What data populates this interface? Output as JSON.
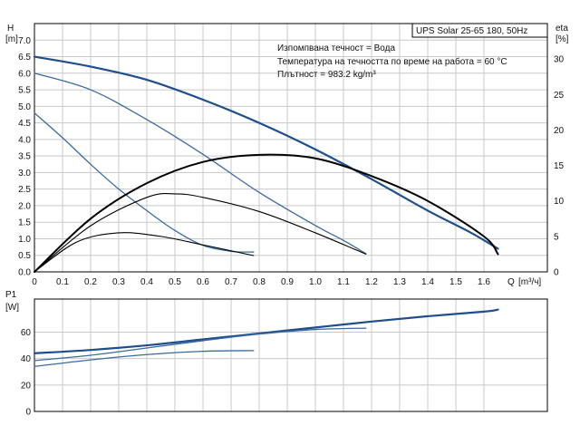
{
  "chart_data": [
    {
      "type": "line",
      "title": "UPS Solar 25-65 180, 50Hz",
      "annotations": [
        "Изпомпвана течност = Вода",
        "Температура на течността по време на работа = 60 °C",
        "Плътност = 983.2 kg/m³"
      ],
      "xlabel": "Q [m³/h]",
      "x_axis_label": "Q",
      "x_unit": "[m³/ч]",
      "ylabel_left": "H [m]",
      "y_left_label": "H",
      "y_left_unit": "[m]",
      "ylabel_right": "eta [%]",
      "y_right_label": "eta",
      "y_right_unit": "[%]",
      "xlim": [
        0,
        1.8
      ],
      "ylim_left": [
        0,
        7.5
      ],
      "ylim_right": [
        0,
        35
      ],
      "x_ticks": [
        "0",
        "0.1",
        "0.2",
        "0.3",
        "0.4",
        "0.5",
        "0.6",
        "0.7",
        "0.8",
        "0.9",
        "1.0",
        "1.1",
        "1.2",
        "1.3",
        "1.4",
        "1.5",
        "1.6"
      ],
      "y_left_ticks": [
        "0.0",
        "0.5",
        "1.0",
        "1.5",
        "2.0",
        "2.5",
        "3.0",
        "3.5",
        "4.0",
        "4.5",
        "5.0",
        "5.5",
        "6.0",
        "6.5",
        "7.0"
      ],
      "y_right_ticks": [
        "0",
        "5",
        "10",
        "15",
        "20",
        "25",
        "30"
      ],
      "grid": true,
      "series": [
        {
          "axis": "left",
          "color": "#1f4e8c",
          "width": 2.2,
          "x": [
            0,
            0.2,
            0.4,
            0.6,
            0.8,
            1.0,
            1.2,
            1.4,
            1.55,
            1.65
          ],
          "y": [
            6.5,
            6.2,
            5.8,
            5.2,
            4.5,
            3.7,
            2.8,
            1.85,
            1.2,
            0.7
          ]
        },
        {
          "axis": "left",
          "color": "#3b6aa0",
          "width": 1.3,
          "x": [
            0,
            0.2,
            0.4,
            0.6,
            0.8,
            1.0,
            1.1,
            1.18
          ],
          "y": [
            6.0,
            5.5,
            4.6,
            3.55,
            2.4,
            1.4,
            0.95,
            0.55
          ]
        },
        {
          "axis": "left",
          "color": "#3b6aa0",
          "width": 1.3,
          "x": [
            0,
            0.1,
            0.2,
            0.3,
            0.4,
            0.5,
            0.6,
            0.7,
            0.78
          ],
          "y": [
            4.8,
            4.05,
            3.25,
            2.5,
            1.85,
            1.25,
            0.8,
            0.62,
            0.6
          ]
        },
        {
          "axis": "right",
          "color": "#000000",
          "width": 2.0,
          "x": [
            0,
            0.2,
            0.4,
            0.6,
            0.8,
            1.0,
            1.2,
            1.4,
            1.6,
            1.65
          ],
          "y": [
            0,
            7.5,
            12.5,
            15.5,
            16.5,
            16.0,
            13.5,
            10.0,
            5.0,
            2.5
          ]
        },
        {
          "axis": "right",
          "color": "#000000",
          "width": 1.1,
          "x": [
            0,
            0.2,
            0.4,
            0.5,
            0.6,
            0.8,
            1.0,
            1.18
          ],
          "y": [
            0,
            6.5,
            10.5,
            11.0,
            10.5,
            8.5,
            5.5,
            2.5
          ]
        },
        {
          "axis": "right",
          "color": "#000000",
          "width": 1.1,
          "x": [
            0,
            0.15,
            0.3,
            0.45,
            0.6,
            0.78
          ],
          "y": [
            0,
            4.2,
            5.5,
            5.0,
            3.8,
            2.3
          ]
        }
      ]
    },
    {
      "type": "line",
      "ylabel": "P1 [W]",
      "y_label": "P1",
      "y_unit": "[W]",
      "xlim": [
        0,
        1.8
      ],
      "ylim": [
        0,
        85
      ],
      "y_ticks": [
        "0",
        "20",
        "40",
        "60"
      ],
      "grid": true,
      "series": [
        {
          "color": "#1f4e8c",
          "width": 2.2,
          "x": [
            0,
            0.2,
            0.4,
            0.6,
            0.8,
            1.0,
            1.2,
            1.4,
            1.6,
            1.65
          ],
          "y": [
            44,
            46.5,
            50,
            54.5,
            59,
            63.5,
            68,
            72,
            75.5,
            77
          ]
        },
        {
          "color": "#3b6aa0",
          "width": 1.3,
          "x": [
            0,
            0.2,
            0.4,
            0.6,
            0.8,
            1.0,
            1.18
          ],
          "y": [
            38.5,
            42.5,
            48,
            53.5,
            58.5,
            62,
            63
          ]
        },
        {
          "color": "#3b6aa0",
          "width": 1.3,
          "x": [
            0,
            0.2,
            0.4,
            0.6,
            0.78
          ],
          "y": [
            34,
            39,
            43,
            45.5,
            46
          ]
        }
      ]
    }
  ]
}
